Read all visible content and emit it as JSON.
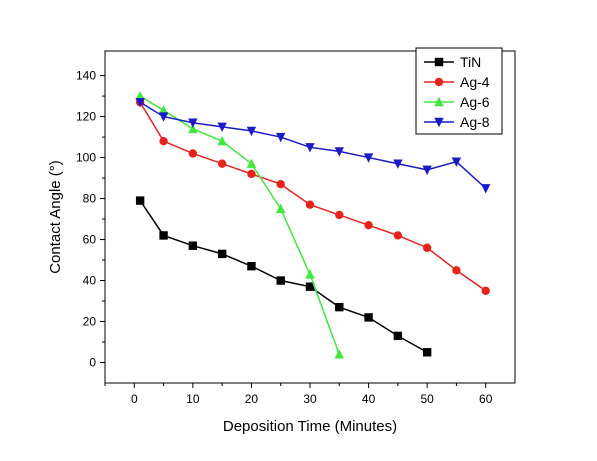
{
  "chart_data": {
    "type": "line",
    "title": "",
    "xlabel": "Deposition Time (Minutes)",
    "ylabel": "Contact Angle (°)",
    "xlim": [
      -5,
      65
    ],
    "ylim": [
      -10,
      152
    ],
    "xticks": [
      0,
      10,
      20,
      30,
      40,
      50,
      60
    ],
    "yticks": [
      0,
      20,
      40,
      60,
      80,
      100,
      120,
      140
    ],
    "grid": false,
    "legend_position": "top-right",
    "series": [
      {
        "name": "TiN",
        "color": "#000000",
        "marker": "square",
        "x": [
          1,
          5,
          10,
          15,
          20,
          25,
          30,
          35,
          40,
          45,
          50
        ],
        "y": [
          79,
          62,
          57,
          53,
          47,
          40,
          37,
          27,
          22,
          13,
          5
        ]
      },
      {
        "name": "Ag-4",
        "color": "#e8231b",
        "marker": "circle",
        "x": [
          1,
          5,
          10,
          15,
          20,
          25,
          30,
          35,
          40,
          45,
          50,
          55,
          60
        ],
        "y": [
          127,
          108,
          102,
          97,
          92,
          87,
          77,
          72,
          67,
          62,
          56,
          45,
          35
        ]
      },
      {
        "name": "Ag-6",
        "color": "#3fe83b",
        "marker": "triangle-up",
        "x": [
          1,
          5,
          10,
          15,
          20,
          25,
          30,
          35
        ],
        "y": [
          130,
          123,
          114,
          108,
          97,
          75,
          43,
          4
        ]
      },
      {
        "name": "Ag-8",
        "color": "#1a1ac8",
        "marker": "triangle-down",
        "x": [
          1,
          5,
          10,
          15,
          20,
          25,
          30,
          35,
          40,
          45,
          50,
          55,
          60
        ],
        "y": [
          127,
          120,
          117,
          115,
          113,
          110,
          105,
          103,
          100,
          97,
          94,
          98,
          85
        ]
      }
    ]
  }
}
